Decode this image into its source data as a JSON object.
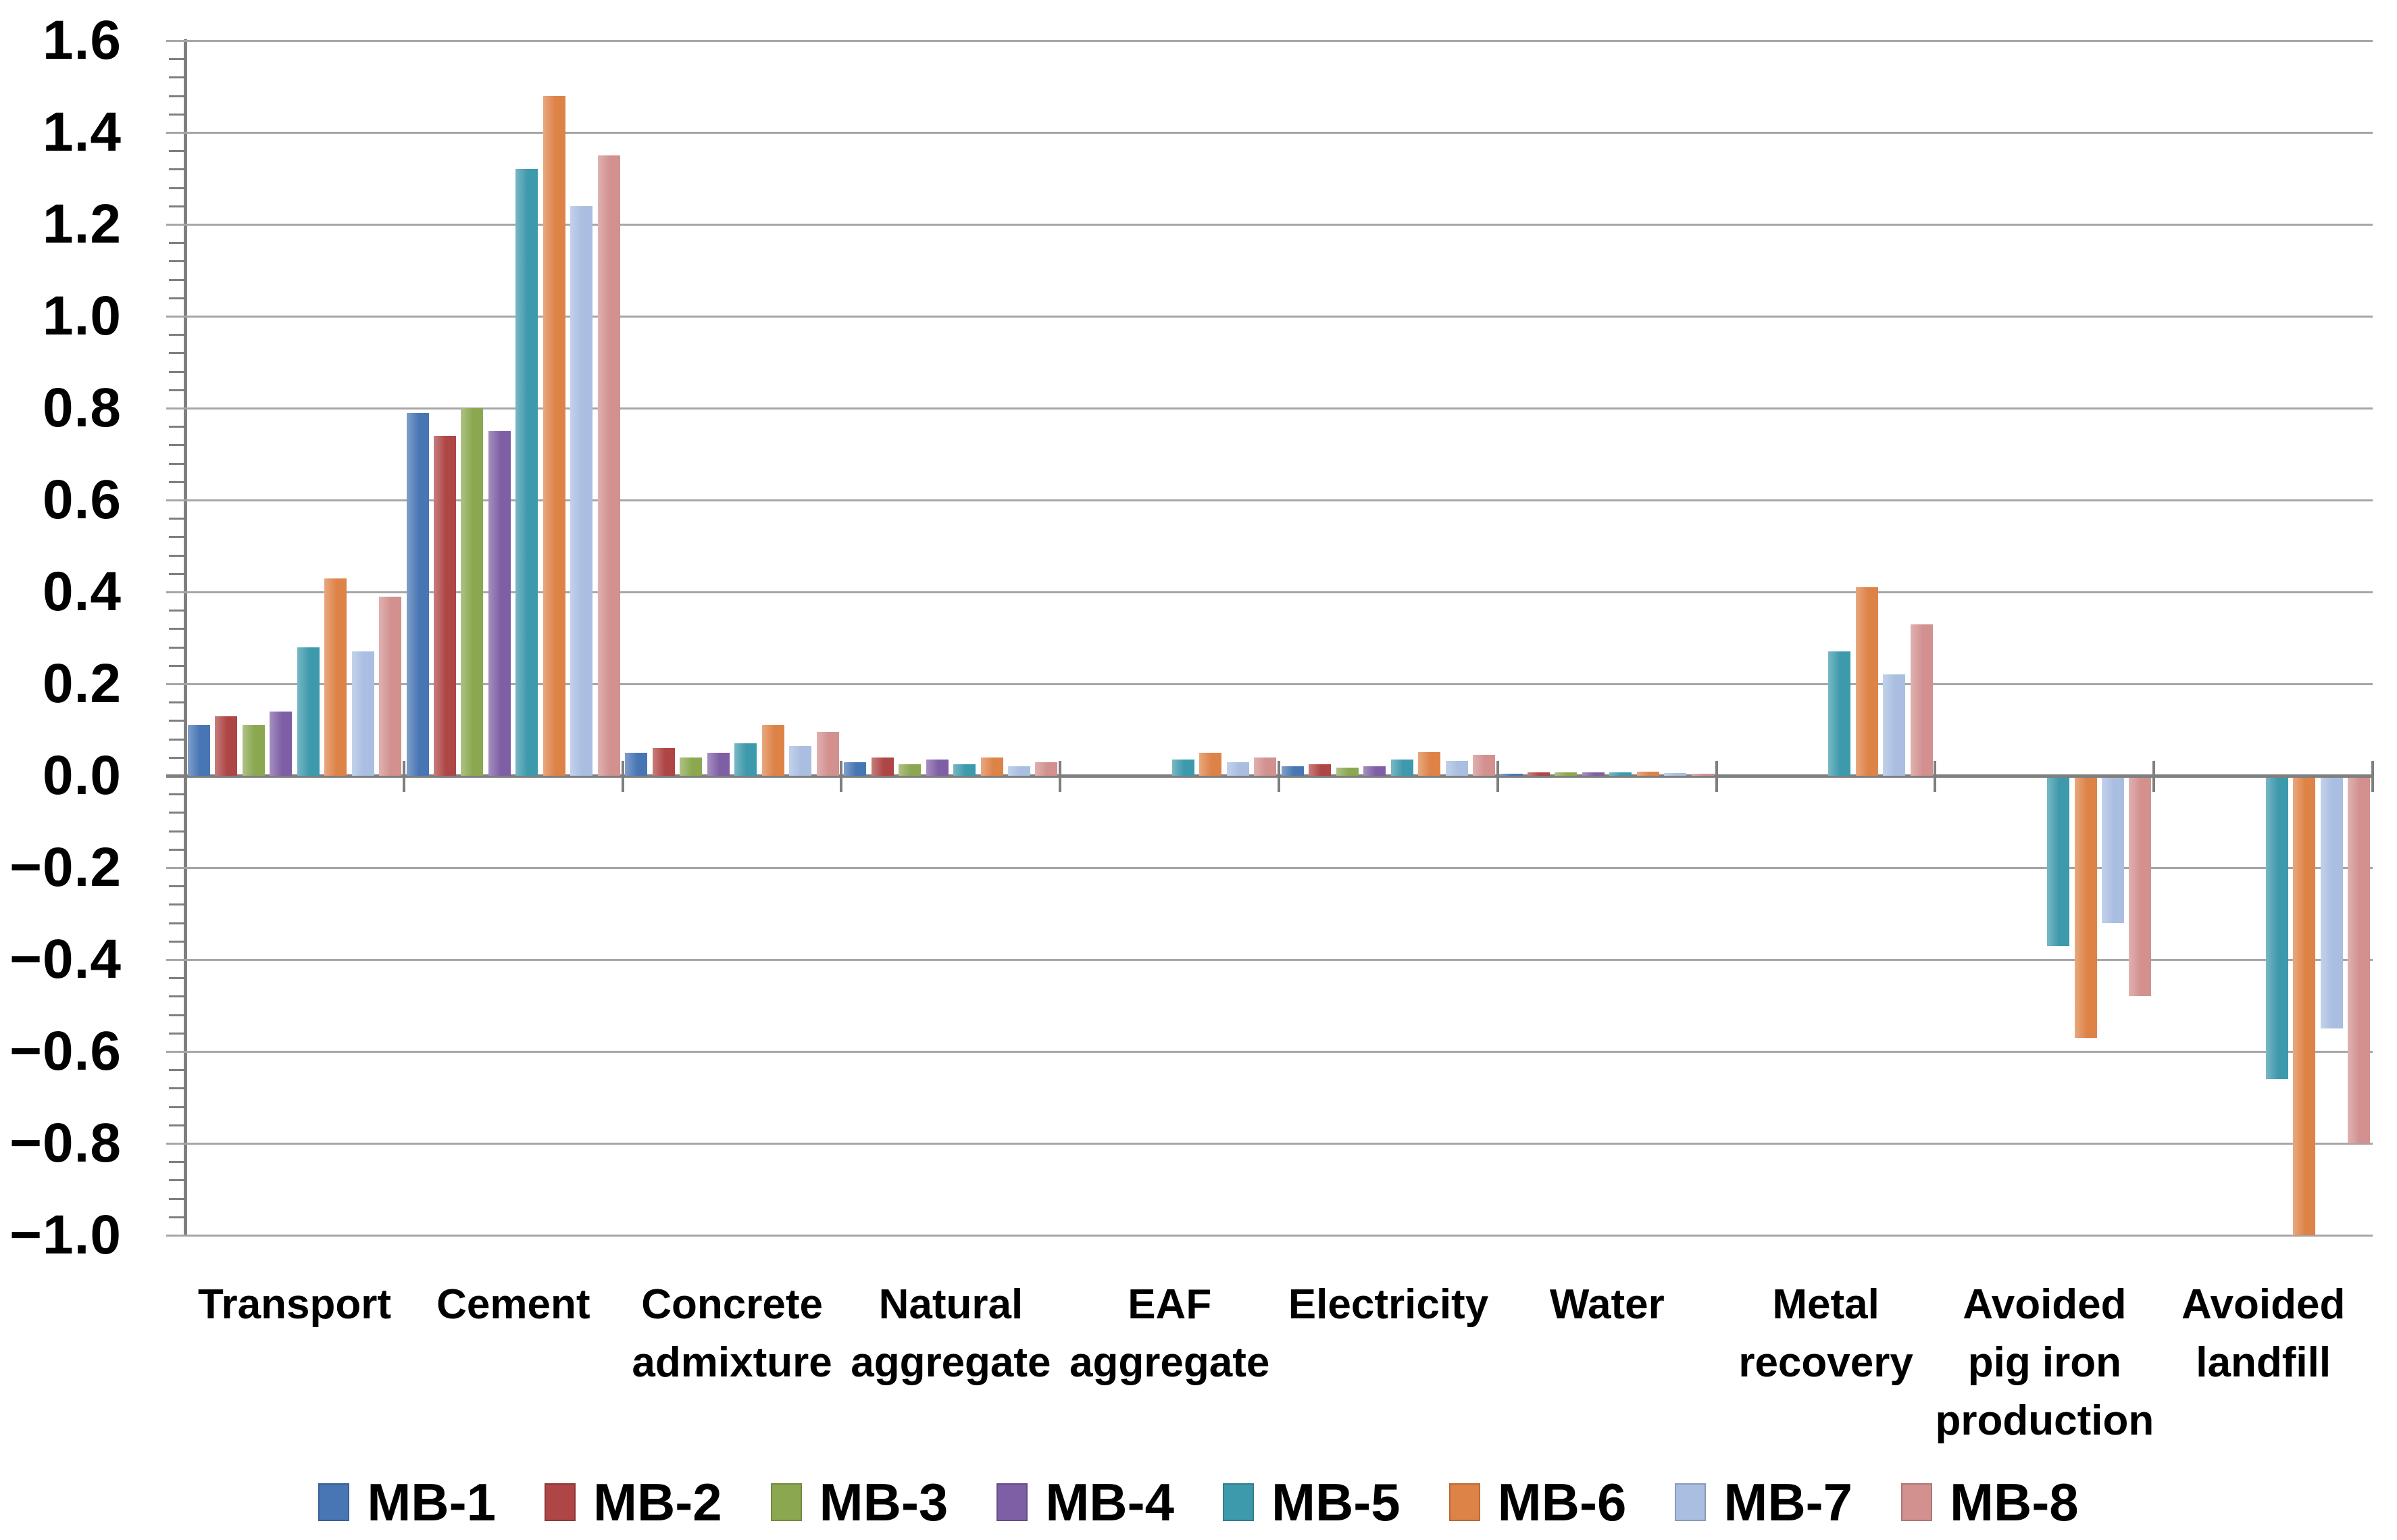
{
  "chart_data": {
    "type": "bar",
    "title": "",
    "xlabel": "",
    "ylabel": "",
    "ylim": [
      -1.0,
      1.6
    ],
    "ytick_step": 0.2,
    "yminor_tick_step": 0.04,
    "grid": "horizontal-major",
    "legend_position": "bottom",
    "categories": [
      "Transport",
      "Cement",
      "Concrete admixture",
      "Natural aggregate",
      "EAF aggregate",
      "Electricity",
      "Water",
      "Metal recovery",
      "Avoided pig iron production",
      "Avoided landfill"
    ],
    "series": [
      {
        "name": "MB-1",
        "color": "#4876B4",
        "values": [
          0.11,
          0.79,
          0.05,
          0.03,
          0,
          0.02,
          0.005,
          0,
          0,
          0
        ]
      },
      {
        "name": "MB-2",
        "color": "#AE4645",
        "values": [
          0.13,
          0.74,
          0.06,
          0.04,
          0,
          0.025,
          0.007,
          0,
          0,
          0
        ]
      },
      {
        "name": "MB-3",
        "color": "#8BA850",
        "values": [
          0.11,
          0.8,
          0.04,
          0.025,
          0,
          0.018,
          0.007,
          0,
          0,
          0
        ]
      },
      {
        "name": "MB-4",
        "color": "#7E5FA5",
        "values": [
          0.14,
          0.75,
          0.05,
          0.035,
          0,
          0.021,
          0.008,
          0,
          0,
          0
        ]
      },
      {
        "name": "MB-5",
        "color": "#3D99AC",
        "values": [
          0.28,
          1.32,
          0.07,
          0.025,
          0.035,
          0.036,
          0.008,
          0.27,
          -0.37,
          -0.66
        ]
      },
      {
        "name": "MB-6",
        "color": "#DE8347",
        "values": [
          0.43,
          1.48,
          0.11,
          0.04,
          0.05,
          0.052,
          0.009,
          0.41,
          -0.57,
          -1.0
        ]
      },
      {
        "name": "MB-7",
        "color": "#A9BEE1",
        "values": [
          0.27,
          1.24,
          0.065,
          0.02,
          0.03,
          0.033,
          0.006,
          0.22,
          -0.32,
          -0.55
        ]
      },
      {
        "name": "MB-8",
        "color": "#D2908F",
        "values": [
          0.39,
          1.35,
          0.095,
          0.03,
          0.04,
          0.046,
          0.005,
          0.33,
          -0.48,
          -0.8
        ]
      }
    ]
  },
  "y_axis": {
    "ticks": [
      {
        "label": "1.6",
        "value": 1.6
      },
      {
        "label": "1.4",
        "value": 1.4
      },
      {
        "label": "1.2",
        "value": 1.2
      },
      {
        "label": "1.0",
        "value": 1.0
      },
      {
        "label": "0.8",
        "value": 0.8
      },
      {
        "label": "0.6",
        "value": 0.6
      },
      {
        "label": "0.4",
        "value": 0.4
      },
      {
        "label": "0.2",
        "value": 0.2
      },
      {
        "label": "0.0",
        "value": 0.0
      },
      {
        "label": "−0.2",
        "value": -0.2
      },
      {
        "label": "−0.4",
        "value": -0.4
      },
      {
        "label": "−0.6",
        "value": -0.6
      },
      {
        "label": "−0.8",
        "value": -0.8
      },
      {
        "label": "−1.0",
        "value": -1.0
      }
    ]
  },
  "colors": {
    "background": "#FFFFFF",
    "gridline": "#A6A6A6",
    "axis": "#7F7F7F",
    "text": "#000000"
  }
}
